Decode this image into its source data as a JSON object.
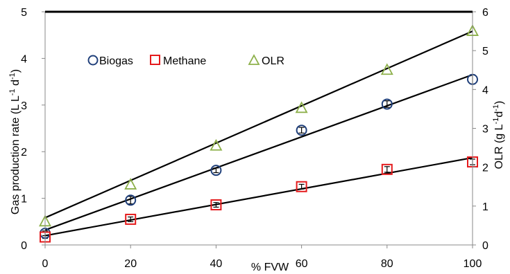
{
  "chart_data": {
    "type": "scatter",
    "xlabel": "% FVW",
    "ylabel_left": {
      "main": "Gas production rate (L L",
      "sup1": "-1",
      "mid": " d",
      "sup2": "-1",
      "end": ")"
    },
    "ylabel_right": {
      "main": "OLR (g L",
      "sup1": "-1",
      "mid": "d",
      "sup2": "-1",
      "end": ")"
    },
    "x_ticks": [
      "0",
      "20",
      "40",
      "60",
      "80",
      "100"
    ],
    "y_left_ticks": [
      "0",
      "1",
      "2",
      "3",
      "4",
      "5"
    ],
    "y_right_ticks": [
      "0",
      "1",
      "2",
      "3",
      "4",
      "5",
      "6"
    ],
    "xlim": [
      0,
      100
    ],
    "ylim_left": [
      0,
      5
    ],
    "ylim_right": [
      0,
      6
    ],
    "grid": false,
    "legend_position": "top-left",
    "series": [
      {
        "name": "Biogas",
        "axis": "left",
        "marker": "circle",
        "color": "#1f3f7a",
        "x": [
          0,
          20,
          40,
          60,
          80,
          100
        ],
        "y": [
          0.25,
          0.96,
          1.6,
          2.46,
          3.02,
          3.55
        ],
        "error": [
          0.05,
          0.08,
          0.05,
          0.06,
          0.07,
          0.1
        ],
        "trend": [
          0.32,
          3.65
        ]
      },
      {
        "name": "Methane",
        "axis": "left",
        "marker": "square",
        "color": "#e41a1c",
        "x": [
          0,
          20,
          40,
          60,
          80,
          100
        ],
        "y": [
          0.17,
          0.55,
          0.86,
          1.25,
          1.62,
          1.78
        ],
        "error": [
          0.03,
          0.05,
          0.05,
          0.05,
          0.06,
          0.06
        ],
        "trend": [
          0.2,
          1.87
        ]
      },
      {
        "name": "OLR",
        "axis": "right",
        "marker": "triangle",
        "color": "#8db04a",
        "x": [
          0,
          20,
          40,
          60,
          80,
          100
        ],
        "y": [
          0.6,
          1.55,
          2.55,
          3.52,
          4.5,
          5.5
        ],
        "trend": [
          0.7,
          5.5
        ]
      }
    ]
  }
}
